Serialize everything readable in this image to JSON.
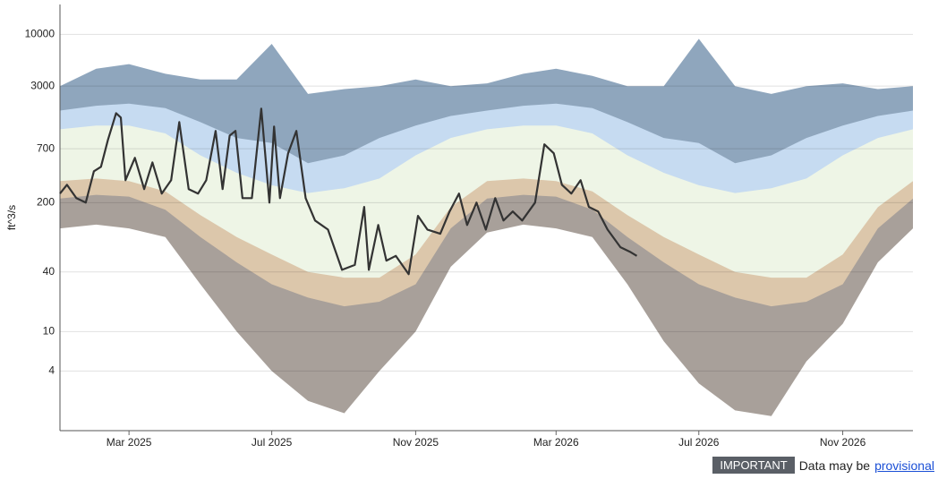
{
  "chart_data": {
    "type": "line",
    "y_label": "ft^3/s",
    "log_y": true,
    "grid": true,
    "ylim": [
      1,
      20000
    ],
    "yticks": [
      4,
      10,
      40,
      200,
      700,
      3000,
      10000
    ],
    "xlim": [
      "2025-01-01",
      "2026-12-31"
    ],
    "xticks": [
      {
        "value": "2025-03-01",
        "label": "Mar 2025"
      },
      {
        "value": "2025-07-01",
        "label": "Jul 2025"
      },
      {
        "value": "2025-11-01",
        "label": "Nov 2025"
      },
      {
        "value": "2026-03-01",
        "label": "Mar 2026"
      },
      {
        "value": "2026-07-01",
        "label": "Jul 2026"
      },
      {
        "value": "2026-11-01",
        "label": "Nov 2026"
      }
    ],
    "bands": {
      "x": [
        "2025-01-01",
        "2025-02-01",
        "2025-03-01",
        "2025-04-01",
        "2025-05-01",
        "2025-06-01",
        "2025-07-01",
        "2025-08-01",
        "2025-09-01",
        "2025-10-01",
        "2025-11-01",
        "2025-12-01",
        "2026-01-01",
        "2026-02-01",
        "2026-03-01",
        "2026-04-01",
        "2026-05-01",
        "2026-06-01",
        "2026-07-01",
        "2026-08-01",
        "2026-09-01",
        "2026-10-01",
        "2026-11-01",
        "2026-12-01",
        "2026-12-31"
      ],
      "series": [
        {
          "color": "#8fa6bd",
          "values": [
            3000,
            4500,
            5000,
            4000,
            3500,
            3500,
            8000,
            2500,
            2800,
            3000,
            3500,
            3000,
            3200,
            4000,
            4500,
            3800,
            3000,
            3000,
            9000,
            3000,
            2500,
            3000,
            3200,
            2800,
            3000
          ]
        },
        {
          "color": "#c6dbf1",
          "values": [
            1700,
            1900,
            2000,
            1800,
            1300,
            900,
            800,
            500,
            600,
            900,
            1200,
            1500,
            1700,
            1900,
            2000,
            1800,
            1300,
            900,
            800,
            500,
            600,
            900,
            1200,
            1500,
            1700
          ]
        },
        {
          "color": "#eef5e6",
          "values": [
            1100,
            1200,
            1200,
            1000,
            600,
            400,
            300,
            250,
            280,
            350,
            600,
            900,
            1100,
            1200,
            1200,
            1000,
            600,
            400,
            300,
            250,
            280,
            350,
            600,
            900,
            1100
          ]
        },
        {
          "color": "#dcc7ab",
          "values": [
            330,
            350,
            330,
            260,
            150,
            90,
            60,
            40,
            35,
            35,
            60,
            180,
            330,
            350,
            330,
            260,
            150,
            90,
            60,
            40,
            35,
            35,
            60,
            180,
            330
          ]
        },
        {
          "color": "#a8a09a",
          "values": [
            220,
            240,
            230,
            170,
            90,
            50,
            30,
            22,
            18,
            20,
            30,
            110,
            220,
            240,
            230,
            170,
            90,
            50,
            30,
            22,
            18,
            20,
            30,
            110,
            220
          ]
        },
        {
          "color": "#ffffff",
          "values": [
            110,
            120,
            110,
            90,
            30,
            10,
            4,
            2,
            1.5,
            4,
            10,
            45,
            100,
            120,
            110,
            90,
            30,
            8,
            3,
            1.6,
            1.4,
            5,
            12,
            50,
            110
          ]
        }
      ]
    },
    "series": [
      {
        "color": "#333333",
        "x": [
          "2025-01-01",
          "2025-01-07",
          "2025-01-15",
          "2025-01-23",
          "2025-01-30",
          "2025-02-05",
          "2025-02-11",
          "2025-02-18",
          "2025-02-22",
          "2025-02-26",
          "2025-03-06",
          "2025-03-14",
          "2025-03-21",
          "2025-03-29",
          "2025-04-06",
          "2025-04-13",
          "2025-04-21",
          "2025-04-29",
          "2025-05-06",
          "2025-05-14",
          "2025-05-20",
          "2025-05-26",
          "2025-05-31",
          "2025-06-06",
          "2025-06-14",
          "2025-06-22",
          "2025-06-29",
          "2025-07-03",
          "2025-07-08",
          "2025-07-15",
          "2025-07-22",
          "2025-07-30",
          "2025-08-07",
          "2025-08-18",
          "2025-08-30",
          "2025-09-10",
          "2025-09-18",
          "2025-09-22",
          "2025-09-30",
          "2025-10-07",
          "2025-10-15",
          "2025-10-26",
          "2025-11-03",
          "2025-11-11",
          "2025-11-22",
          "2025-11-30",
          "2025-12-08",
          "2025-12-15",
          "2025-12-23",
          "2025-12-31",
          "2026-01-08",
          "2026-01-15",
          "2026-01-23",
          "2026-01-31",
          "2026-02-11",
          "2026-02-19",
          "2026-02-27",
          "2026-03-06",
          "2026-03-14",
          "2026-03-22",
          "2026-03-29",
          "2026-04-06",
          "2026-04-14",
          "2026-04-25",
          "2026-05-03",
          "2026-05-09"
        ],
        "values": [
          247,
          303,
          222,
          200,
          415,
          460,
          860,
          1600,
          1445,
          337,
          566,
          274,
          510,
          247,
          337,
          1300,
          274,
          247,
          337,
          1060,
          274,
          950,
          1060,
          222,
          222,
          1780,
          200,
          1170,
          222,
          630,
          1060,
          222,
          132,
          107,
          42,
          47,
          181,
          42,
          119,
          52,
          58,
          38,
          147,
          107,
          97,
          163,
          247,
          119,
          200,
          107,
          222,
          132,
          163,
          132,
          200,
          775,
          630,
          303,
          247,
          337,
          181,
          163,
          107,
          71,
          64,
          58
        ]
      }
    ]
  },
  "footer": {
    "badge": "IMPORTANT",
    "text": "Data may be",
    "link": "provisional"
  }
}
